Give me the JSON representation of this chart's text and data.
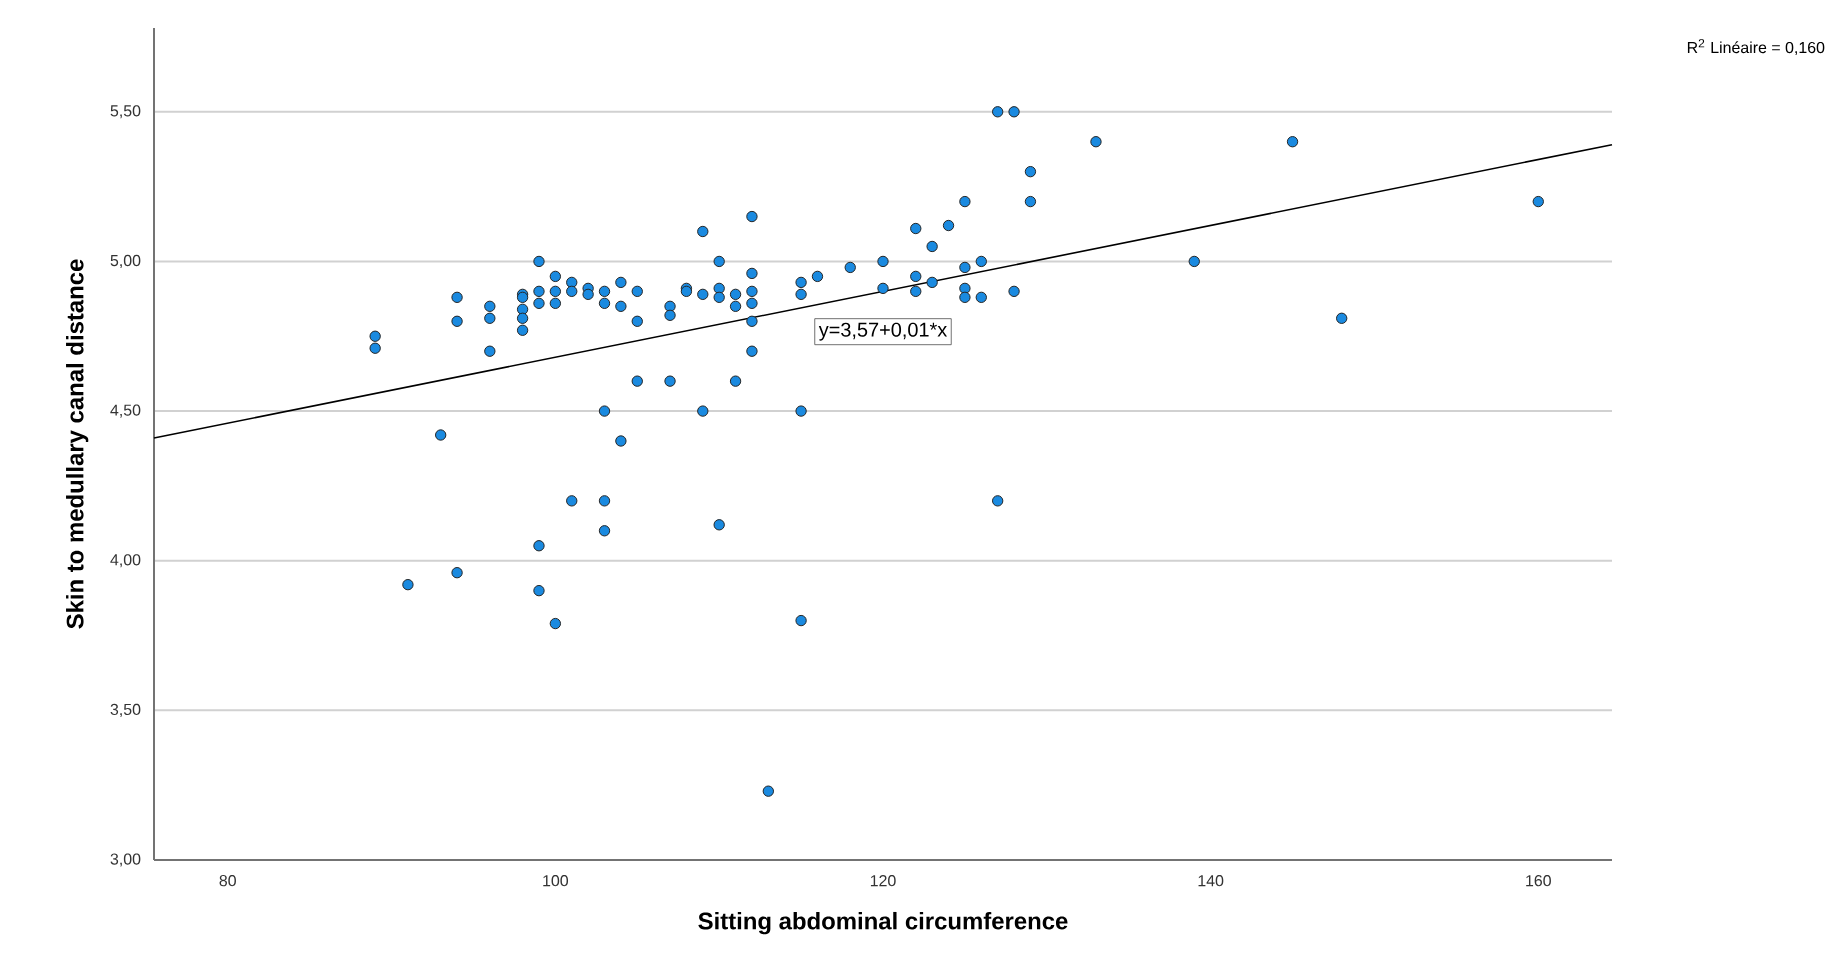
{
  "chart_data": {
    "type": "scatter",
    "xlabel": "Sitting abdominal circumference",
    "ylabel": "Skin to medullary canal distance",
    "annotations": [
      "y=3,57+0,01*x",
      "R$^{2}$ Linéaire = 0,160"
    ],
    "xlim": [
      75.5,
      164.5
    ],
    "ylim": [
      3.0,
      5.78
    ],
    "xticks": [
      80,
      100,
      120,
      140,
      160
    ],
    "yticks": [
      {
        "value": 3.0,
        "label": "3,00"
      },
      {
        "value": 3.5,
        "label": "3,50"
      },
      {
        "value": 4.0,
        "label": "4,00"
      },
      {
        "value": 4.5,
        "label": "4,50"
      },
      {
        "value": 5.0,
        "label": "5,00"
      },
      {
        "value": 5.5,
        "label": "5,50"
      }
    ],
    "grid": "y",
    "series": [
      {
        "color": "#1a8ae0",
        "marker": "circle",
        "x": [
          89,
          89,
          93,
          94,
          94,
          96,
          96,
          96,
          98,
          98,
          98,
          98,
          98,
          99,
          99,
          99,
          100,
          100,
          100,
          101,
          101,
          102,
          102,
          103,
          103,
          103,
          104,
          104,
          104,
          105,
          105,
          105,
          107,
          107,
          107,
          108,
          108,
          109,
          109,
          109,
          110,
          110,
          110,
          111,
          111,
          111,
          112,
          112,
          112,
          112,
          112,
          112,
          115,
          115,
          115,
          116,
          118,
          120,
          120,
          122,
          122,
          122,
          123,
          123,
          124,
          125,
          125,
          125,
          125,
          126,
          126,
          127,
          127,
          128,
          128,
          129,
          129,
          133,
          139,
          145,
          148,
          160,
          91,
          94,
          99,
          99,
          100,
          101,
          103,
          103,
          110,
          113,
          115
        ],
        "values": [
          4.75,
          4.71,
          4.42,
          4.88,
          4.8,
          4.85,
          4.81,
          4.7,
          4.89,
          4.88,
          4.84,
          4.81,
          4.77,
          5.0,
          4.9,
          4.86,
          4.95,
          4.9,
          4.86,
          4.93,
          4.9,
          4.91,
          4.89,
          4.9,
          4.86,
          4.5,
          4.93,
          4.85,
          4.4,
          4.9,
          4.8,
          4.6,
          4.85,
          4.82,
          4.6,
          4.91,
          4.9,
          5.1,
          4.89,
          4.5,
          5.0,
          4.91,
          4.88,
          4.89,
          4.85,
          4.6,
          5.15,
          4.96,
          4.9,
          4.86,
          4.8,
          4.7,
          4.93,
          4.89,
          4.5,
          4.95,
          4.98,
          5.0,
          4.91,
          5.11,
          4.95,
          4.9,
          5.05,
          4.93,
          5.12,
          5.2,
          4.98,
          4.91,
          4.88,
          5.0,
          4.88,
          5.5,
          4.2,
          5.5,
          4.9,
          5.3,
          5.2,
          5.4,
          5.0,
          5.4,
          4.81,
          5.2,
          3.92,
          3.96,
          4.05,
          3.9,
          3.79,
          4.2,
          4.2,
          4.1,
          4.12,
          3.23,
          3.8
        ]
      },
      {
        "type": "line",
        "color": "#000000",
        "x": [
          75.5,
          164.5
        ],
        "values": [
          4.41,
          5.39
        ]
      }
    ]
  }
}
